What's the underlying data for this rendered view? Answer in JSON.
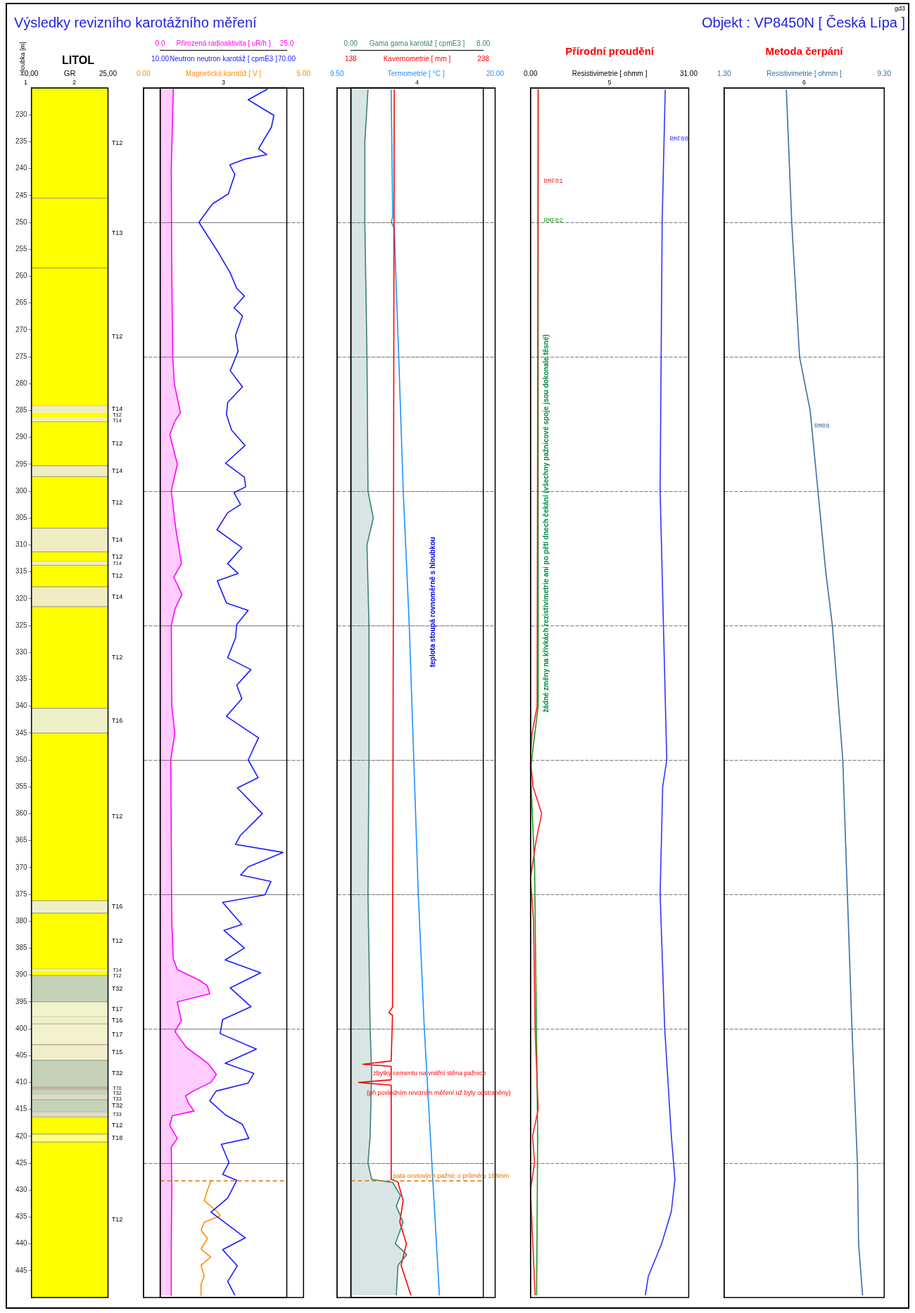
{
  "chart_data": [
    {
      "type": "line",
      "title": "Výsledky revizního karotážního měření",
      "ylabel": "Hloubka [m]",
      "xlabel": "GR",
      "xlim": [
        0,
        25
      ],
      "xticks": [
        {
          "value": 0,
          "label": "0,00"
        },
        {
          "value": 25,
          "label": "25,00"
        }
      ],
      "ylim": [
        450,
        225
      ],
      "yticks": [
        230,
        235,
        240,
        245,
        250,
        255,
        260,
        265,
        270,
        275,
        280,
        285,
        290,
        295,
        300,
        305,
        310,
        315,
        320,
        325,
        330,
        335,
        340,
        345,
        350,
        355,
        360,
        365,
        370,
        375,
        380,
        385,
        390,
        395,
        400,
        405,
        410,
        415,
        420,
        425,
        430,
        435,
        440,
        445
      ],
      "annotations": [
        "Objekt : VP8450N [ Česká Lípa ]",
        "gd3",
        "LITOL",
        "1",
        "2"
      ],
      "bands": [
        {
          "axis": "y",
          "from": 225,
          "to": 245.5,
          "label": "T12",
          "color": "#ffff00"
        },
        {
          "axis": "y",
          "from": 245.5,
          "to": 258.5,
          "label": "T13",
          "color": "#ffff00"
        },
        {
          "axis": "y",
          "from": 258.5,
          "to": 284.1,
          "label": "T12",
          "color": "#ffff00"
        },
        {
          "axis": "y",
          "from": 284.1,
          "to": 285.4,
          "label": "T14",
          "color": "#f0ecc4"
        },
        {
          "axis": "y",
          "from": 285.4,
          "to": 286.4,
          "label": "T12",
          "color": "#ffff00"
        },
        {
          "axis": "y",
          "from": 286.4,
          "to": 287.1,
          "label": "T14",
          "color": "#f0ecc4"
        },
        {
          "axis": "y",
          "from": 287.1,
          "to": 295.3,
          "label": "T12",
          "color": "#ffff00"
        },
        {
          "axis": "y",
          "from": 295.3,
          "to": 297.3,
          "label": "T14",
          "color": "#f0ecc4"
        },
        {
          "axis": "y",
          "from": 297.3,
          "to": 306.9,
          "label": "T12",
          "color": "#ffff00"
        },
        {
          "axis": "y",
          "from": 306.9,
          "to": 311.3,
          "label": "T14",
          "color": "#f0ecc4"
        },
        {
          "axis": "y",
          "from": 311.3,
          "to": 313.1,
          "label": "T12",
          "color": "#ffff00"
        },
        {
          "axis": "y",
          "from": 313.1,
          "to": 313.8,
          "label": "T14",
          "color": "#f0ecc4"
        },
        {
          "axis": "y",
          "from": 313.8,
          "to": 317.8,
          "label": "T12",
          "color": "#ffff00"
        },
        {
          "axis": "y",
          "from": 317.8,
          "to": 321.5,
          "label": "T14",
          "color": "#f0ecc4"
        },
        {
          "axis": "y",
          "from": 321.5,
          "to": 340.4,
          "label": "T12",
          "color": "#ffff00"
        },
        {
          "axis": "y",
          "from": 340.4,
          "to": 345,
          "label": "T16",
          "color": "#eef0c8"
        },
        {
          "axis": "y",
          "from": 345,
          "to": 376.2,
          "label": "T12",
          "color": "#ffff00"
        },
        {
          "axis": "y",
          "from": 376.2,
          "to": 378.5,
          "label": "T16",
          "color": "#eef0c8"
        },
        {
          "axis": "y",
          "from": 378.5,
          "to": 388.9,
          "label": "T12",
          "color": "#ffff00"
        },
        {
          "axis": "y",
          "from": 388.9,
          "to": 389.4,
          "label": "T14",
          "color": "#f0ecc4"
        },
        {
          "axis": "y",
          "from": 389.4,
          "to": 390.1,
          "label": "T12",
          "color": "#ffff00"
        },
        {
          "axis": "y",
          "from": 390.1,
          "to": 395,
          "label": "T32",
          "color": "#c5d2b8"
        },
        {
          "axis": "y",
          "from": 395,
          "to": 397.8,
          "label": "T17",
          "color": "#f2f2cc"
        },
        {
          "axis": "y",
          "from": 397.8,
          "to": 399.1,
          "label": "T16",
          "color": "#eef0c8"
        },
        {
          "axis": "y",
          "from": 399.1,
          "to": 403,
          "label": "T17",
          "color": "#f2f2cc"
        },
        {
          "axis": "y",
          "from": 403,
          "to": 405.9,
          "label": "T15",
          "color": "#f2eecc"
        },
        {
          "axis": "y",
          "from": 405.9,
          "to": 410.8,
          "label": "T32",
          "color": "#c5d2b8"
        },
        {
          "axis": "y",
          "from": 410.8,
          "to": 411.4,
          "label": "T70",
          "color": "#c9b0a6"
        },
        {
          "axis": "y",
          "from": 411.4,
          "to": 412.3,
          "label": "T32",
          "color": "#c5d2b8"
        },
        {
          "axis": "y",
          "from": 412.3,
          "to": 413.2,
          "label": "T33",
          "color": "#e2dac8"
        },
        {
          "axis": "y",
          "from": 413.2,
          "to": 415.5,
          "label": "T32",
          "color": "#c5d2b8"
        },
        {
          "axis": "y",
          "from": 415.5,
          "to": 416.4,
          "label": "T33",
          "color": "#e2dac8"
        },
        {
          "axis": "y",
          "from": 416.4,
          "to": 419.6,
          "label": "T12",
          "color": "#ffff00"
        },
        {
          "axis": "y",
          "from": 419.6,
          "to": 421.1,
          "label": "T18",
          "color": "#ffff80"
        },
        {
          "axis": "y",
          "from": 421.1,
          "to": 450,
          "label": "T12",
          "color": "#ffff00"
        }
      ]
    },
    {
      "type": "line",
      "subtitle": "3",
      "orientation": "horizontal",
      "xlabel": "Přirozená radioaktivita [ uR/h ]",
      "xlim": [
        0,
        25
      ],
      "xticks": [
        {
          "value": 0,
          "label": "0.0"
        },
        {
          "value": 25,
          "label": "25.0"
        }
      ],
      "x2label": "Neutron neutron karotáž [ cpmE3 ]",
      "x2lim": [
        10,
        70
      ],
      "x2ticks": [
        {
          "value": 10,
          "label": "10.00"
        },
        {
          "value": 70,
          "label": "70.00"
        }
      ],
      "ylim": [
        450,
        225
      ],
      "yticks": [
        250,
        275,
        300,
        325,
        350,
        375,
        400,
        425
      ],
      "tick_labels": "x",
      "grid": "y",
      "ref_lines": [
        {
          "axis": "y",
          "value": 428.3,
          "color": "#e07000",
          "line_style": "dashed"
        }
      ],
      "series": [
        {
          "type": "area",
          "color": "#ff00ff",
          "x": [
            225.2,
            240,
            260,
            275,
            280,
            285.4,
            287,
            289.5,
            295,
            300,
            307,
            313.5,
            316,
            319.2,
            322,
            325,
            340,
            345,
            350,
            380,
            387,
            389,
            391,
            392,
            393.5,
            395,
            398.5,
            400.5,
            403.5,
            406.5,
            408.5,
            410,
            411.5,
            412.5,
            414,
            415.3,
            416.2,
            418,
            420.4,
            422,
            430,
            440,
            449.6
          ],
          "values": [
            2.6,
            2.2,
            2.3,
            2.5,
            2.8,
            4.0,
            2.9,
            1.9,
            3.4,
            2.2,
            3.1,
            4.2,
            2.7,
            4.3,
            2.9,
            2.2,
            2.3,
            2.9,
            2.1,
            2.3,
            2.6,
            3.4,
            7.8,
            9.3,
            9.8,
            3.4,
            4.2,
            2.9,
            5.2,
            9.5,
            11.1,
            10.0,
            6.7,
            5.0,
            5.7,
            6.7,
            2.4,
            1.9,
            3.4,
            2.2,
            2.3,
            2.2,
            2.2
          ]
        },
        {
          "type": "line",
          "color": "#1a1aff",
          "axis": "x2",
          "x": [
            225.2,
            227.2,
            230.1,
            232.3,
            236.3,
            237.4,
            238.2,
            239.3,
            241.1,
            244.7,
            246.6,
            250,
            253.5,
            255.7,
            259.4,
            262.3,
            263.7,
            265.9,
            267.4,
            271,
            274,
            277.6,
            280.6,
            283.5,
            285.7,
            288.6,
            291.5,
            294.8,
            297.4,
            299.2,
            300.3,
            302.5,
            304,
            307.2,
            310.5,
            313.5,
            315.3,
            316.7,
            320.8,
            322.2,
            324.8,
            327.3,
            331,
            333.2,
            336.1,
            338.6,
            341.9,
            345.9,
            350,
            353.3,
            355.2,
            360,
            364,
            365.7,
            367.2,
            369.9,
            371.4,
            372.6,
            375.1,
            376.5,
            380.6,
            381.7,
            385,
            387.2,
            389.6,
            392.4,
            395.9,
            398.3,
            400.9,
            403.8,
            406.4,
            408.3,
            410.1,
            411.6,
            413.4,
            416,
            417.8,
            420.4,
            421.5,
            424.9,
            427.1,
            428.2,
            431.5,
            434.1,
            438.9,
            441.1,
            444.1,
            447,
            449.6
          ],
          "values": [
            60.9,
            51.7,
            63.9,
            62.7,
            56.6,
            60.5,
            50.5,
            43,
            45.4,
            42.3,
            34.7,
            28.4,
            34.1,
            37.7,
            43.2,
            46.3,
            49.9,
            45,
            49,
            45.7,
            46.9,
            43.2,
            49,
            42,
            41.4,
            43.8,
            50.2,
            41,
            49.9,
            50.5,
            45,
            48.1,
            42,
            36.9,
            48.7,
            42,
            46.9,
            37.1,
            41.4,
            51.7,
            46.3,
            45.7,
            42,
            53,
            46.3,
            48.7,
            41.4,
            56.6,
            51.7,
            56.4,
            46.6,
            58.4,
            48.1,
            45.7,
            68.2,
            51.7,
            48.1,
            62.5,
            59.6,
            39.6,
            48.7,
            40.2,
            49.9,
            40.8,
            57.6,
            43.2,
            53,
            39.6,
            38.4,
            55.6,
            40.8,
            54.4,
            51.7,
            36.5,
            33.5,
            40.8,
            49,
            52,
            39,
            42.6,
            39.6,
            46.3,
            42,
            34.1,
            50.3,
            39.6,
            46.6,
            42,
            45.4
          ]
        }
      ]
    },
    {
      "type": "line",
      "orientation": "horizontal",
      "xlabel": "Magnetická karotáž [ V ]",
      "xlim": [
        0,
        5
      ],
      "xticks": [
        {
          "value": 0,
          "label": "0.00"
        },
        {
          "value": 5,
          "label": "5.00"
        }
      ],
      "ylim": [
        450,
        225
      ],
      "yticks": [
        250,
        275,
        300,
        325,
        350,
        375,
        400,
        425
      ],
      "tick_labels": "x",
      "grid": "y",
      "series": [
        {
          "type": "line",
          "color": "#ff8c00",
          "x": [
            428.4,
            430,
            432,
            434,
            434.8,
            436,
            437.5,
            439,
            441,
            442.5,
            444,
            446,
            447.5,
            449.6
          ],
          "values": [
            2.1,
            2.0,
            1.9,
            2.3,
            2.4,
            1.9,
            1.8,
            2.0,
            1.8,
            2.1,
            1.8,
            1.9,
            1.8,
            1.8
          ]
        }
      ]
    },
    {
      "type": "line",
      "subtitle": "4",
      "orientation": "horizontal",
      "xlabel": "Gama gama karotáž [ cpmE3 ]",
      "xlim": [
        0,
        8
      ],
      "xticks": [
        {
          "value": 0,
          "label": "0.00"
        },
        {
          "value": 8,
          "label": "8.00"
        }
      ],
      "x2label": "Kavernometrie [ mm ]",
      "x2lim": [
        138,
        238
      ],
      "x2ticks": [
        138,
        238
      ],
      "ylim": [
        450,
        225
      ],
      "yticks": [
        250,
        275,
        300,
        325,
        350,
        375,
        400,
        425
      ],
      "tick_labels": "x",
      "grid": "y",
      "annotations": [
        "teplota stoupá rovnoměrně s hloubkou",
        "zbytky cementu na vnitřní stěna pažnice",
        "(při posledním revizním měření už byly odstraněny)"
      ],
      "ref_lines": [
        {
          "axis": "y",
          "value": 428.3,
          "color": "#e07000",
          "line_style": "dashed",
          "label": "pata ocelových pažnic o průměru 168mm"
        }
      ],
      "series": [
        {
          "type": "area",
          "color": "#3f7f78",
          "x": [
            225.3,
            235,
            250,
            275,
            300,
            305,
            310,
            325,
            350,
            375,
            400,
            408,
            420,
            425,
            428,
            428.6,
            431,
            433,
            436,
            440,
            442,
            444,
            449.6
          ],
          "values": [
            1.04,
            0.85,
            0.85,
            0.98,
            1.04,
            1.36,
            0.98,
            1.1,
            1.1,
            1.04,
            1.17,
            1.26,
            1.17,
            1.04,
            1.26,
            2.53,
            3.0,
            2.75,
            3.16,
            2.69,
            3.38,
            2.85,
            2.75
          ]
        },
        {
          "type": "line",
          "color": "#ff0000",
          "axis": "x2",
          "x": [
            225.3,
            300,
            396,
            397,
            397.5,
            406,
            406.6,
            407,
            409.5,
            410,
            410.5,
            428,
            428.5,
            432,
            436,
            440,
            444,
            449.6
          ],
          "values": [
            170.8,
            170.3,
            169.5,
            166.8,
            169.5,
            168.5,
            147.1,
            168.5,
            168.5,
            143.9,
            168.5,
            168.5,
            173.6,
            177.5,
            175,
            180,
            176,
            183.4
          ]
        }
      ]
    },
    {
      "type": "line",
      "orientation": "horizontal",
      "xlabel": "Termometrie [ °C ]",
      "xlim": [
        9.5,
        20
      ],
      "xticks": [
        {
          "value": 9.5,
          "label": "9.50"
        },
        {
          "value": 20,
          "label": "20.00"
        }
      ],
      "ylim": [
        450,
        225
      ],
      "yticks": [
        250,
        275,
        300,
        325,
        350,
        375,
        400,
        425
      ],
      "tick_labels": "x",
      "grid": "y",
      "series": [
        {
          "type": "line",
          "color": "#1e90ff",
          "x": [
            225.3,
            249,
            250,
            251,
            275,
            300,
            325,
            350,
            375,
            400,
            425,
            449.6
          ],
          "values": [
            13.1,
            13.2,
            13.1,
            13.3,
            13.6,
            13.9,
            14.3,
            14.6,
            14.9,
            15.3,
            15.8,
            16.3
          ]
        }
      ]
    },
    {
      "type": "line",
      "title": "Přírodní proudění",
      "subtitle": "5",
      "orientation": "horizontal",
      "xlabel": "Resistivimetrie [ ohmm ]",
      "xlim": [
        0,
        31
      ],
      "xticks": [
        {
          "value": 0,
          "label": "0.00"
        },
        {
          "value": 31,
          "label": "31.00"
        }
      ],
      "ylim": [
        450,
        225
      ],
      "yticks": [
        250,
        275,
        300,
        325,
        350,
        375,
        400,
        425
      ],
      "tick_labels": "x",
      "grid": "y",
      "annotations": [
        "žádné změny na křivkách rezistivimetrie ani po pěti dnech čekání (všechny pažnicové spoje jsou dokonale těsné)"
      ],
      "series": [
        {
          "name": "RMF00",
          "type": "line",
          "color": "#3333ff",
          "x": [
            225.3,
            250,
            300,
            350,
            355,
            375,
            400,
            420,
            428,
            434,
            440,
            446,
            449.6
          ],
          "values": [
            26.4,
            25.8,
            25.4,
            26.7,
            25.9,
            25.4,
            26.3,
            27.6,
            28.3,
            27.6,
            25.7,
            23.1,
            22.5
          ]
        },
        {
          "name": "RMF01",
          "type": "line",
          "color": "#ff2020",
          "x": [
            225.3,
            340,
            345,
            350,
            355,
            360,
            365,
            372,
            380,
            400,
            415,
            420,
            425,
            430,
            449.6
          ],
          "values": [
            1.5,
            1.3,
            0.3,
            0,
            0.5,
            2.2,
            1.1,
            0,
            0.6,
            0.9,
            1.5,
            0.4,
            0.8,
            0,
            0.9
          ]
        },
        {
          "name": "RMF02",
          "type": "line",
          "color": "#1a9a1a",
          "x": [
            225.3,
            340,
            347,
            352,
            370,
            395,
            420,
            449.6
          ],
          "values": [
            1.5,
            1.5,
            0.6,
            0,
            0.8,
            1.1,
            1.4,
            1.2
          ]
        }
      ]
    },
    {
      "type": "line",
      "title": "Metoda čerpání",
      "subtitle": "6",
      "orientation": "horizontal",
      "xlabel": "Resistivimetrie [ ohmm ]",
      "xlim": [
        1.3,
        9.3
      ],
      "xticks": [
        {
          "value": 1.3,
          "label": "1.30"
        },
        {
          "value": 9.3,
          "label": "9.30"
        }
      ],
      "ylim": [
        450,
        225
      ],
      "yticks": [
        250,
        275,
        300,
        325,
        350,
        375,
        400,
        425
      ],
      "tick_labels": "x",
      "grid": "y",
      "series": [
        {
          "name": "RM08",
          "type": "line",
          "color": "#3a6ea5",
          "x": [
            225.3,
            250,
            275,
            285,
            300,
            315,
            325,
            350,
            375,
            400,
            425,
            440,
            449.6
          ],
          "values": [
            4.41,
            4.68,
            5.07,
            5.6,
            5.99,
            6.38,
            6.71,
            7.23,
            7.46,
            7.69,
            7.96,
            8.02,
            8.22
          ]
        }
      ]
    }
  ]
}
